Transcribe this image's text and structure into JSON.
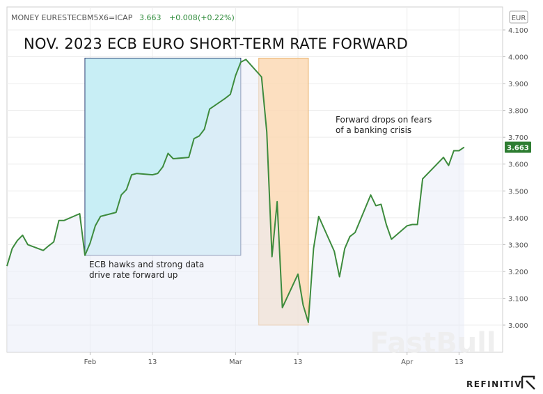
{
  "header": {
    "symbol": "MONEY EURESTECBM5X6=ICAP",
    "last": "3.663",
    "change": "+0.008",
    "change_pct": "(+0.22%)",
    "change_color": "#2e8b3a",
    "currency": "EUR"
  },
  "title": "NOV. 2023 ECB EURO SHORT-TERM RATE FORWARD",
  "brand": "REFINITIV",
  "watermark": "FastBull",
  "last_badge": "3.663",
  "annotations": {
    "rise_line1": "ECB hawks and strong data",
    "rise_line2": "drive rate forward up",
    "drop_line1": "Forward drops on fears",
    "drop_line2": "of a banking crisis"
  },
  "colors": {
    "line": "#3d8b3d",
    "area_fill": "#e9ecf7",
    "rise_box": "#c8eef5",
    "drop_box": "#fbd9b5",
    "badge": "#2e7d32"
  },
  "chart_data": {
    "type": "line",
    "title": "NOV. 2023 ECB EURO SHORT-TERM RATE FORWARD",
    "xlabel": "",
    "ylabel": "",
    "currency": "EUR",
    "ylim": [
      2.9,
      4.12
    ],
    "y_ticks": [
      "4.100",
      "4.000",
      "3.900",
      "3.800",
      "3.700",
      "3.600",
      "3.500",
      "3.400",
      "3.300",
      "3.200",
      "3.100",
      "3.000"
    ],
    "x_ticks": [
      {
        "label": "Feb",
        "x": "2023-02-01"
      },
      {
        "label": "13",
        "x": "2023-02-13"
      },
      {
        "label": "Mar",
        "x": "2023-03-01"
      },
      {
        "label": "13",
        "x": "2023-03-13"
      },
      {
        "label": "Apr",
        "x": "2023-04-03"
      },
      {
        "label": "13",
        "x": "2023-04-13"
      }
    ],
    "xlim": [
      "2023-01-16",
      "2023-04-23"
    ],
    "series": [
      {
        "values": [
          {
            "x": "2023-01-16",
            "y": 3.22
          },
          {
            "x": "2023-01-17",
            "y": 3.285
          },
          {
            "x": "2023-01-18",
            "y": 3.315
          },
          {
            "x": "2023-01-19",
            "y": 3.335
          },
          {
            "x": "2023-01-20",
            "y": 3.3
          },
          {
            "x": "2023-01-23",
            "y": 3.278
          },
          {
            "x": "2023-01-24",
            "y": 3.295
          },
          {
            "x": "2023-01-25",
            "y": 3.31
          },
          {
            "x": "2023-01-26",
            "y": 3.39
          },
          {
            "x": "2023-01-27",
            "y": 3.39
          },
          {
            "x": "2023-01-30",
            "y": 3.415
          },
          {
            "x": "2023-01-31",
            "y": 3.26
          },
          {
            "x": "2023-02-01",
            "y": 3.305
          },
          {
            "x": "2023-02-02",
            "y": 3.37
          },
          {
            "x": "2023-02-03",
            "y": 3.405
          },
          {
            "x": "2023-02-06",
            "y": 3.42
          },
          {
            "x": "2023-02-07",
            "y": 3.485
          },
          {
            "x": "2023-02-08",
            "y": 3.505
          },
          {
            "x": "2023-02-09",
            "y": 3.56
          },
          {
            "x": "2023-02-10",
            "y": 3.565
          },
          {
            "x": "2023-02-13",
            "y": 3.56
          },
          {
            "x": "2023-02-14",
            "y": 3.565
          },
          {
            "x": "2023-02-15",
            "y": 3.59
          },
          {
            "x": "2023-02-16",
            "y": 3.64
          },
          {
            "x": "2023-02-17",
            "y": 3.62
          },
          {
            "x": "2023-02-20",
            "y": 3.625
          },
          {
            "x": "2023-02-21",
            "y": 3.695
          },
          {
            "x": "2023-02-22",
            "y": 3.705
          },
          {
            "x": "2023-02-23",
            "y": 3.73
          },
          {
            "x": "2023-02-24",
            "y": 3.805
          },
          {
            "x": "2023-02-27",
            "y": 3.845
          },
          {
            "x": "2023-02-28",
            "y": 3.86
          },
          {
            "x": "2023-03-01",
            "y": 3.93
          },
          {
            "x": "2023-03-02",
            "y": 3.98
          },
          {
            "x": "2023-03-03",
            "y": 3.99
          },
          {
            "x": "2023-03-06",
            "y": 3.925
          },
          {
            "x": "2023-03-07",
            "y": 3.72
          },
          {
            "x": "2023-03-08",
            "y": 3.255
          },
          {
            "x": "2023-03-09",
            "y": 3.46
          },
          {
            "x": "2023-03-10",
            "y": 3.065
          },
          {
            "x": "2023-03-13",
            "y": 3.19
          },
          {
            "x": "2023-03-14",
            "y": 3.075
          },
          {
            "x": "2023-03-15",
            "y": 3.01
          },
          {
            "x": "2023-03-16",
            "y": 3.285
          },
          {
            "x": "2023-03-17",
            "y": 3.405
          },
          {
            "x": "2023-03-20",
            "y": 3.275
          },
          {
            "x": "2023-03-21",
            "y": 3.18
          },
          {
            "x": "2023-03-22",
            "y": 3.285
          },
          {
            "x": "2023-03-23",
            "y": 3.33
          },
          {
            "x": "2023-03-24",
            "y": 3.345
          },
          {
            "x": "2023-03-27",
            "y": 3.485
          },
          {
            "x": "2023-03-28",
            "y": 3.445
          },
          {
            "x": "2023-03-29",
            "y": 3.45
          },
          {
            "x": "2023-03-30",
            "y": 3.375
          },
          {
            "x": "2023-03-31",
            "y": 3.32
          },
          {
            "x": "2023-04-03",
            "y": 3.37
          },
          {
            "x": "2023-04-04",
            "y": 3.375
          },
          {
            "x": "2023-04-05",
            "y": 3.375
          },
          {
            "x": "2023-04-06",
            "y": 3.545
          },
          {
            "x": "2023-04-10",
            "y": 3.625
          },
          {
            "x": "2023-04-11",
            "y": 3.595
          },
          {
            "x": "2023-04-12",
            "y": 3.65
          },
          {
            "x": "2023-04-13",
            "y": 3.65
          },
          {
            "x": "2023-04-14",
            "y": 3.663
          }
        ]
      }
    ],
    "highlight_rise": {
      "x_start": "2023-01-31",
      "x_end": "2023-03-02",
      "y_low": 3.26,
      "y_high": 3.995
    },
    "highlight_drop": {
      "x_start": "2023-03-06",
      "x_end": "2023-03-15",
      "y_low": 3.0,
      "y_high": 3.995
    },
    "grid": true,
    "legend": "none"
  }
}
